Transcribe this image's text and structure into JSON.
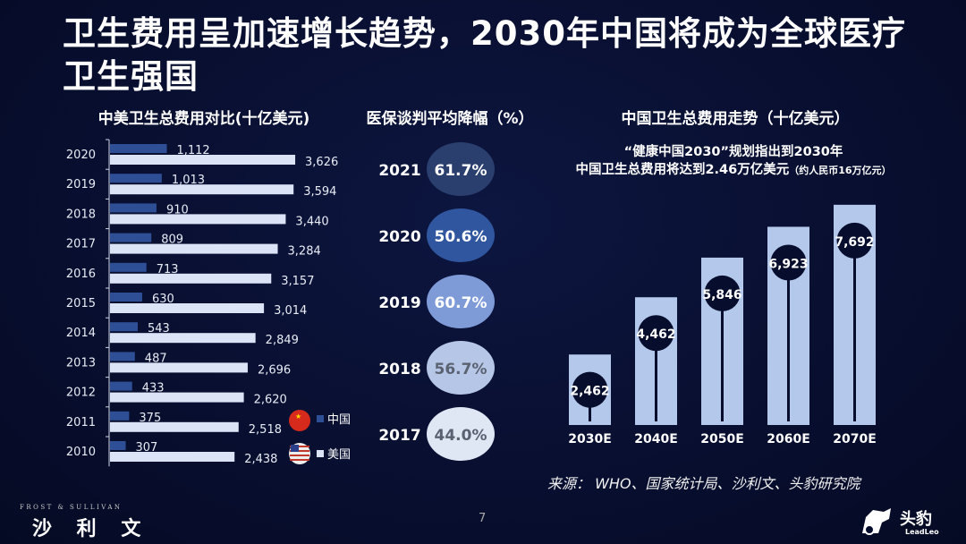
{
  "title": "卫生费用呈加速增长趋势，2030年中国将成为全球医疗卫生强国",
  "note": {
    "line1": "“健康中国2030”规划指出到2030年",
    "line2": "中国卫生总费用将达到2.46万亿美元",
    "line2_small": "（约人民币16万亿元）"
  },
  "source": "来源： WHO、国家统计局、沙利文、头豹研究院",
  "page_number": "7",
  "footer": {
    "left_logo_en": "FROST & SULLIVAN",
    "left_logo_cn": "沙 利 文",
    "right_logo_cn": "头豹",
    "right_logo_en": "LeadLeo"
  },
  "colors": {
    "bg": "#070d2c",
    "china": "#2e4f96",
    "usa": "#dbe4f7",
    "bar": "#b4c8ec"
  },
  "chart_data": [
    {
      "type": "bar",
      "orientation": "horizontal",
      "title": "中美卫生总费用对比(十亿美元)",
      "categories": [
        "2020",
        "2019",
        "2018",
        "2017",
        "2016",
        "2015",
        "2014",
        "2013",
        "2012",
        "2011",
        "2010"
      ],
      "series": [
        {
          "name": "中国",
          "values": [
            1112,
            1013,
            910,
            809,
            713,
            630,
            543,
            487,
            433,
            375,
            307
          ],
          "labels": [
            "1,112",
            "1,013",
            "910",
            "809",
            "713",
            "630",
            "543",
            "487",
            "433",
            "375",
            "307"
          ]
        },
        {
          "name": "美国",
          "values": [
            3626,
            3594,
            3440,
            3284,
            3157,
            3014,
            2849,
            2696,
            2620,
            2518,
            2438
          ],
          "labels": [
            "3,626",
            "3,594",
            "3,440",
            "3,284",
            "3,157",
            "3,014",
            "2,849",
            "2,696",
            "2,620",
            "2,518",
            "2,438"
          ]
        }
      ],
      "legend": [
        "中国",
        "美国"
      ]
    },
    {
      "type": "table",
      "title": "医保谈判平均降幅（%）",
      "categories": [
        "2021",
        "2020",
        "2019",
        "2018",
        "2017"
      ],
      "values": [
        61.7,
        50.6,
        60.7,
        56.7,
        44.0
      ],
      "labels": [
        "61.7%",
        "50.6%",
        "60.7%",
        "56.7%",
        "44.0%"
      ]
    },
    {
      "type": "bar",
      "title": "中国卫生总费用走势（十亿美元）",
      "categories": [
        "2030E",
        "2040E",
        "2050E",
        "2060E",
        "2070E"
      ],
      "values": [
        2462,
        4462,
        5846,
        6923,
        7692
      ],
      "labels": [
        "2,462",
        "4,462",
        "5,846",
        "6,923",
        "7,692"
      ]
    }
  ]
}
